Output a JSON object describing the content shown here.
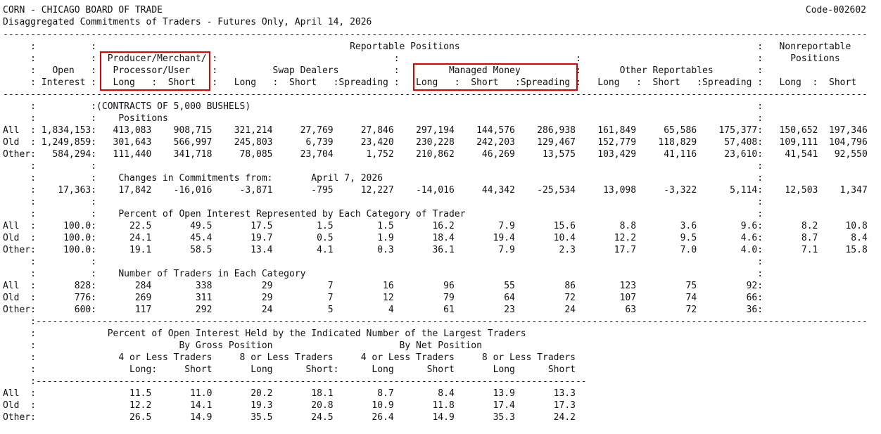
{
  "header": {
    "title": "CORN - CHICAGO BOARD OF TRADE",
    "code": "Code-002602",
    "subtitle": "Disaggregated Commitments of Traders - Futures Only, April 14, 2026"
  },
  "report": {
    "lines": [
      "-------------------------------------------------------------------------------------------------------------------------------------------------------------",
      "     :          :                                              Reportable Positions                                                      :   Nonreportable",
      "     :          :  Producer/Merchant/ :                                :                                :                                :     Positions",
      "     :   Open   :   Processor/User    :          Swap Dealers          :         Managed Money          :       Other Reportables        :",
      "     : Interest :   Long   :  Short   :   Long   :  Short   :Spreading :   Long   :  Short   :Spreading :   Long   :  Short   :Spreading :   Long  :  Short",
      "-------------------------------------------------------------------------------------------------------------------------------------------------------------",
      "     :          :(CONTRACTS OF 5,000 BUSHELS)                                                                                            :",
      "     :          :    Positions                                                                                                           :",
      "All  : 1,834,153:   413,083    908,715    321,214     27,769     27,846    297,194    144,576    286,938    161,849     65,586    175,377:   150,652  197,346",
      "Old  : 1,249,859:   301,643    566,997    245,803      6,739     23,420    230,228    242,203    129,467    152,779    118,829     57,408:   109,111  104,796",
      "Other:   584,294:   111,440    341,718     78,085     23,704      1,752    210,862     46,269     13,575    103,429     41,116     23,610:    41,541   92,550",
      "     :          :                                                                                                                        :",
      "     :          :    Changes in Commitments from:       April 7, 2026                                                                    :",
      "     :    17,363:    17,842    -16,016     -3,871       -795     12,227    -14,016     44,342    -25,534     13,098     -3,322      5,114:    12,503    1,347",
      "     :          :                                                                                                                        :",
      "     :          :    Percent of Open Interest Represented by Each Category of Trader                                                     :",
      "All  :     100.0:      22.5       49.5       17.5        1.5        1.5       16.2        7.9       15.6        8.8        3.6        9.6:       8.2     10.8",
      "Old  :     100.0:      24.1       45.4       19.7        0.5        1.9       18.4       19.4       10.4       12.2        9.5        4.6:       8.7      8.4",
      "Other:     100.0:      19.1       58.5       13.4        4.1        0.3       36.1        7.9        2.3       17.7        7.0        4.0:       7.1     15.8",
      "     :          :                                                                                                                        :",
      "     :          :    Number of Traders in Each Category                                                                                  :",
      "All  :       828:       284        338         29          7         16         96         55         86        123         75         92:",
      "Old  :       776:       269        311         29          7         12         79         64         72        107         74         66:",
      "Other:       600:       117        292         24          5          4         61         23         24         63         72         36:",
      "     :-------------------------------------------------------------------------------------------------------------------------------------------------------",
      "     :             Percent of Open Interest Held by the Indicated Number of the Largest Traders",
      "     :                          By Gross Position                       By Net Position",
      "     :               4 or Less Traders     8 or Less Traders     4 or Less Traders     8 or Less Traders",
      "     :                 Long:     Short       Long      Short:      Long      Short       Long      Short",
      "     :----------------------------------------------------------------------------------------------------",
      "All  :                 11.5       11.0       20.2       18.1        8.7        8.4       13.9       13.3",
      "Old  :                 12.2       14.1       19.3       20.8       10.9       11.8       17.4       17.3",
      "Other:                 26.5       14.9       35.5       24.5       26.4       14.9       35.3       24.2"
    ]
  }
}
